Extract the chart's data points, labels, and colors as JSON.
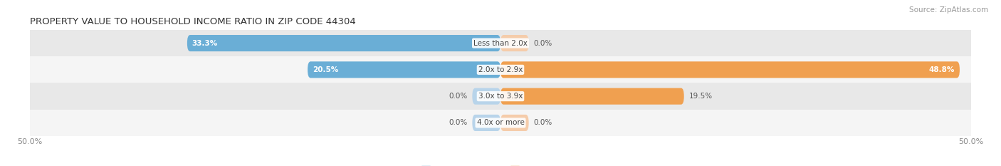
{
  "title": "PROPERTY VALUE TO HOUSEHOLD INCOME RATIO IN ZIP CODE 44304",
  "source": "Source: ZipAtlas.com",
  "categories": [
    "Less than 2.0x",
    "2.0x to 2.9x",
    "3.0x to 3.9x",
    "4.0x or more"
  ],
  "without_mortgage": [
    33.3,
    20.5,
    0.0,
    0.0
  ],
  "with_mortgage": [
    0.0,
    48.8,
    19.5,
    0.0
  ],
  "bar_height": 0.62,
  "xlim": [
    -50,
    50
  ],
  "color_without": "#6aaed6",
  "color_with": "#f0a050",
  "color_without_light": "#b8d4ea",
  "color_with_light": "#f5ccaa",
  "bg_row_odd": "#e8e8e8",
  "bg_row_even": "#f5f5f5",
  "title_fontsize": 9.5,
  "source_fontsize": 7.5,
  "label_fontsize": 7.5,
  "category_fontsize": 7.5,
  "tick_fontsize": 8,
  "min_stub": 3.0
}
